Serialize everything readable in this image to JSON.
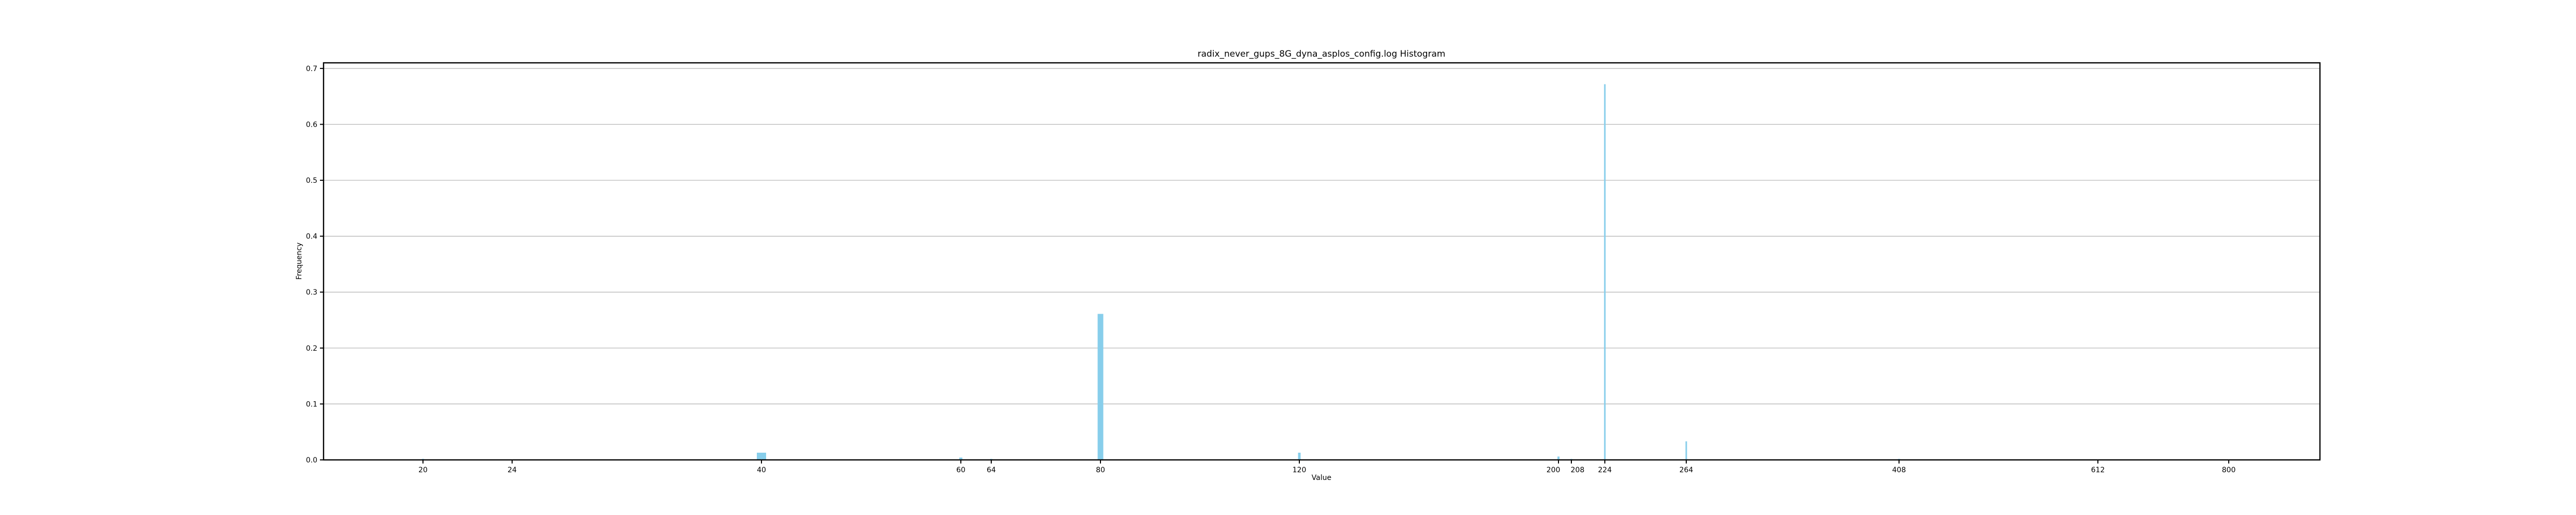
{
  "chart_data": {
    "type": "bar",
    "title": "radix_never_gups_8G_dyna_asplos_config.log Histogram",
    "xlabel": "Value",
    "ylabel": "Frequency",
    "ylim": [
      0,
      0.71
    ],
    "grid": "horizontal",
    "bar_color": "#87ceeb",
    "x_tick_labels": [
      "20",
      "24",
      "40",
      "60",
      "64",
      "80",
      "120",
      "200",
      "208",
      "224",
      "264",
      "408",
      "612",
      "800"
    ],
    "y_tick_labels": [
      "0.0",
      "0.1",
      "0.2",
      "0.3",
      "0.4",
      "0.5",
      "0.6",
      "0.7"
    ],
    "y_ticks": [
      0.0,
      0.1,
      0.2,
      0.3,
      0.4,
      0.5,
      0.6,
      0.7
    ],
    "bars": [
      {
        "label": "20",
        "value": 0.002
      },
      {
        "label": "24",
        "value": 0.001
      },
      {
        "label": "40",
        "value": 0.013
      },
      {
        "label": "60",
        "value": 0.004
      },
      {
        "label": "64",
        "value": 0.002
      },
      {
        "label": "80",
        "value": 0.261
      },
      {
        "label": "120",
        "value": 0.013
      },
      {
        "label": "200",
        "value": 0.006
      },
      {
        "label": "208",
        "value": 0.002
      },
      {
        "label": "224",
        "value": 0.672
      },
      {
        "label": "264",
        "value": 0.033
      },
      {
        "label": "408",
        "value": 0.002
      },
      {
        "label": "612",
        "value": 0.001
      },
      {
        "label": "800",
        "value": 0.001
      }
    ]
  }
}
